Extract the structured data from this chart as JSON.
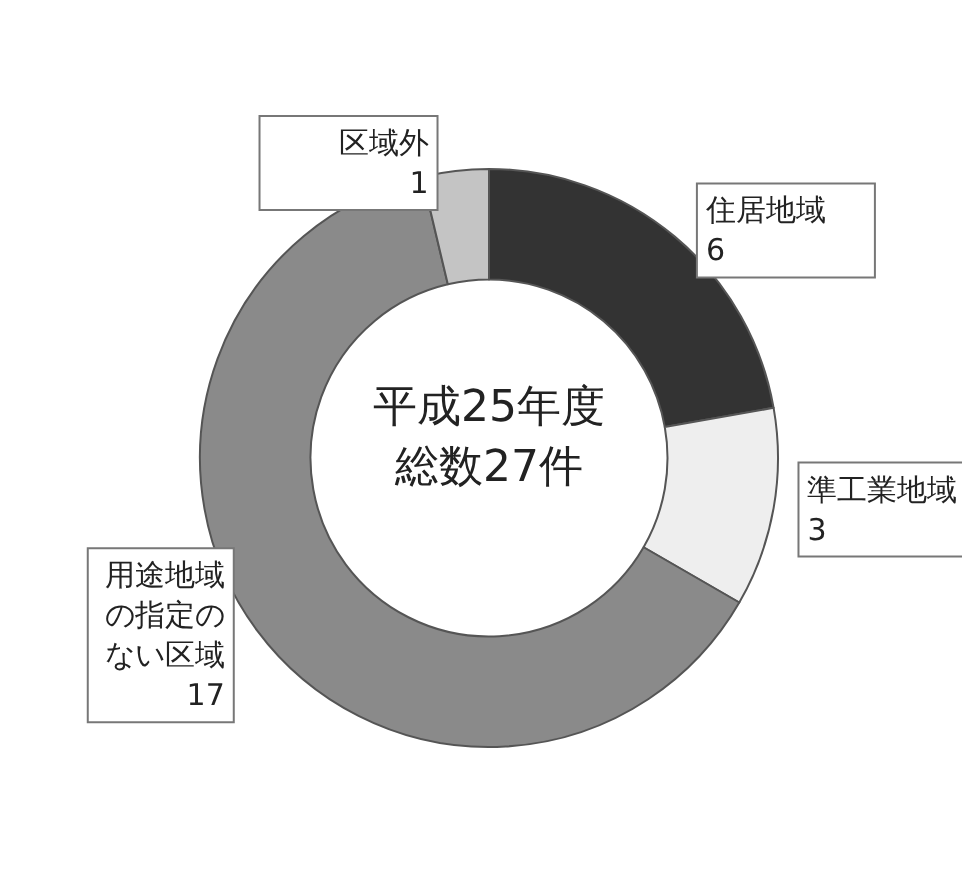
{
  "chart_data": {
    "type": "donut",
    "title": "平成25年度",
    "subtitle": "総数27件",
    "categories": [
      "住居地域",
      "準工業地域",
      "用途地域の指定のない区域",
      "区域外"
    ],
    "values": [
      6,
      3,
      17,
      1
    ],
    "colors": [
      "#333333",
      "#eeeeee",
      "#8a8a8a",
      "#c4c4c4"
    ],
    "data_labels": true,
    "legend": false
  }
}
